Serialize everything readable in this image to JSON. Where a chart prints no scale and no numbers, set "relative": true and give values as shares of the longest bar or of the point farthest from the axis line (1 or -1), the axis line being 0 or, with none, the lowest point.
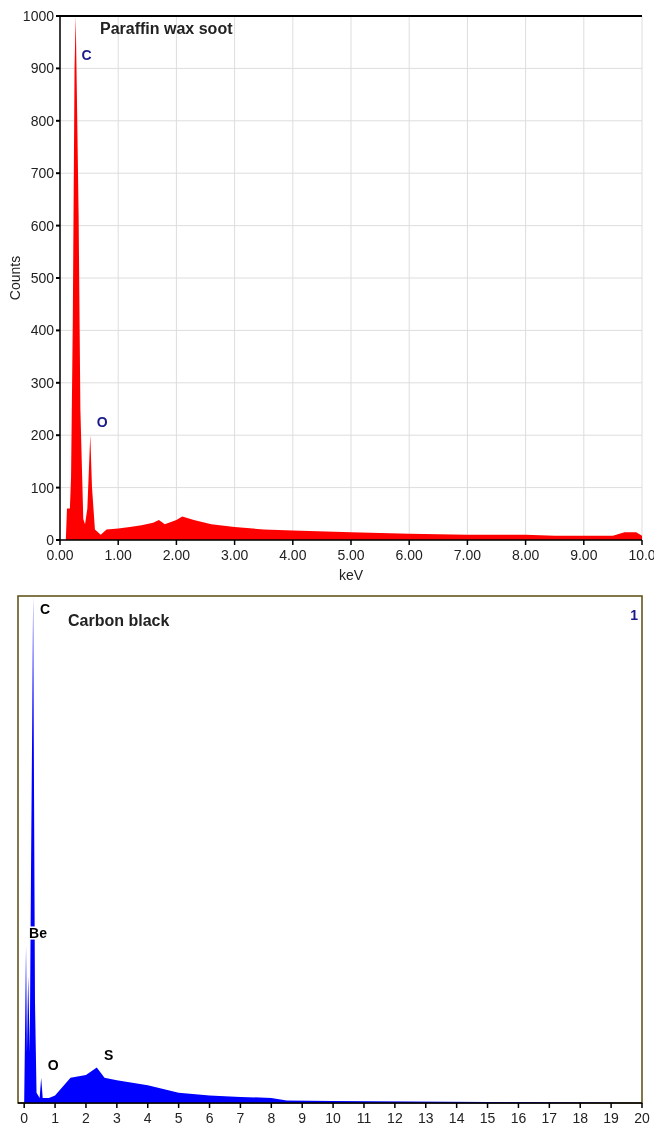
{
  "chart_data": [
    {
      "type": "area",
      "title": "Paraffin wax soot",
      "xlabel": "keV",
      "ylabel": "Counts",
      "xlim": [
        0,
        10
      ],
      "ylim": [
        0,
        1000
      ],
      "xticks": [
        {
          "value": 0,
          "label": "0.00"
        },
        {
          "value": 1,
          "label": "1.00"
        },
        {
          "value": 2,
          "label": "2.00"
        },
        {
          "value": 3,
          "label": "3.00"
        },
        {
          "value": 4,
          "label": "4.00"
        },
        {
          "value": 5,
          "label": "5.00"
        },
        {
          "value": 6,
          "label": "6.00"
        },
        {
          "value": 7,
          "label": "7.00"
        },
        {
          "value": 8,
          "label": "8.00"
        },
        {
          "value": 9,
          "label": "9.00"
        },
        {
          "value": 10,
          "label": "10.0"
        }
      ],
      "yticks": [
        0,
        100,
        200,
        300,
        400,
        500,
        600,
        700,
        800,
        900,
        1000
      ],
      "grid": true,
      "x": [
        0.1,
        0.12,
        0.17,
        0.19,
        0.22,
        0.25,
        0.27,
        0.29,
        0.32,
        0.35,
        0.4,
        0.43,
        0.47,
        0.52,
        0.55,
        0.6,
        0.7,
        0.8,
        1.0,
        1.2,
        1.4,
        1.6,
        1.7,
        1.8,
        2.0,
        2.1,
        2.3,
        2.6,
        3.0,
        3.5,
        4.0,
        5.0,
        6.0,
        7.0,
        8.0,
        8.5,
        9.0,
        9.5,
        9.7,
        9.9,
        10.0
      ],
      "series": [
        {
          "color": "#ff0000",
          "values": [
            0,
            60,
            60,
            120,
            420,
            900,
            1000,
            850,
            620,
            250,
            40,
            30,
            60,
            200,
            100,
            20,
            10,
            20,
            22,
            25,
            28,
            33,
            38,
            30,
            38,
            45,
            38,
            30,
            25,
            20,
            18,
            15,
            12,
            10,
            10,
            8,
            8,
            8,
            15,
            15,
            8
          ]
        }
      ],
      "annotations": [
        {
          "text": "C",
          "x": 0.25,
          "y": 900
        },
        {
          "text": "O",
          "x": 0.52,
          "y": 200
        }
      ]
    },
    {
      "type": "area",
      "title": "Carbon black",
      "relative": true,
      "tick_labels": "x",
      "xlim": [
        -0.2,
        20
      ],
      "xticks": [
        0,
        1,
        2,
        3,
        4,
        5,
        6,
        7,
        8,
        9,
        10,
        11,
        12,
        13,
        14,
        15,
        16,
        17,
        18,
        19,
        20
      ],
      "x": [
        0,
        0.03,
        0.06,
        0.09,
        0.13,
        0.18,
        0.22,
        0.26,
        0.29,
        0.32,
        0.35,
        0.4,
        0.5,
        0.55,
        0.6,
        0.8,
        1.0,
        1.5,
        2.0,
        2.35,
        2.6,
        3.0,
        4.0,
        5.0,
        6.0,
        7.0,
        8.0,
        8.5,
        10,
        15,
        20
      ],
      "series": [
        {
          "color": "#0000ff",
          "values": [
            0,
            0.15,
            0.31,
            0.1,
            0.25,
            0.1,
            0.45,
            0.75,
            1,
            0.6,
            0.2,
            0.02,
            0.01,
            0.05,
            0.01,
            0.01,
            0.015,
            0.05,
            0.055,
            0.07,
            0.05,
            0.045,
            0.035,
            0.02,
            0.015,
            0.012,
            0.01,
            0.005,
            0.004,
            0.002,
            0
          ]
        }
      ],
      "annotations": [
        {
          "text": "C",
          "x": 0.29,
          "y": 1
        },
        {
          "text": "Be",
          "x": 0.06,
          "y": 0.31
        },
        {
          "text": "O",
          "x": 0.55,
          "y": 0.05
        },
        {
          "text": "S",
          "x": 2.35,
          "y": 0.07
        },
        "1"
      ]
    }
  ]
}
